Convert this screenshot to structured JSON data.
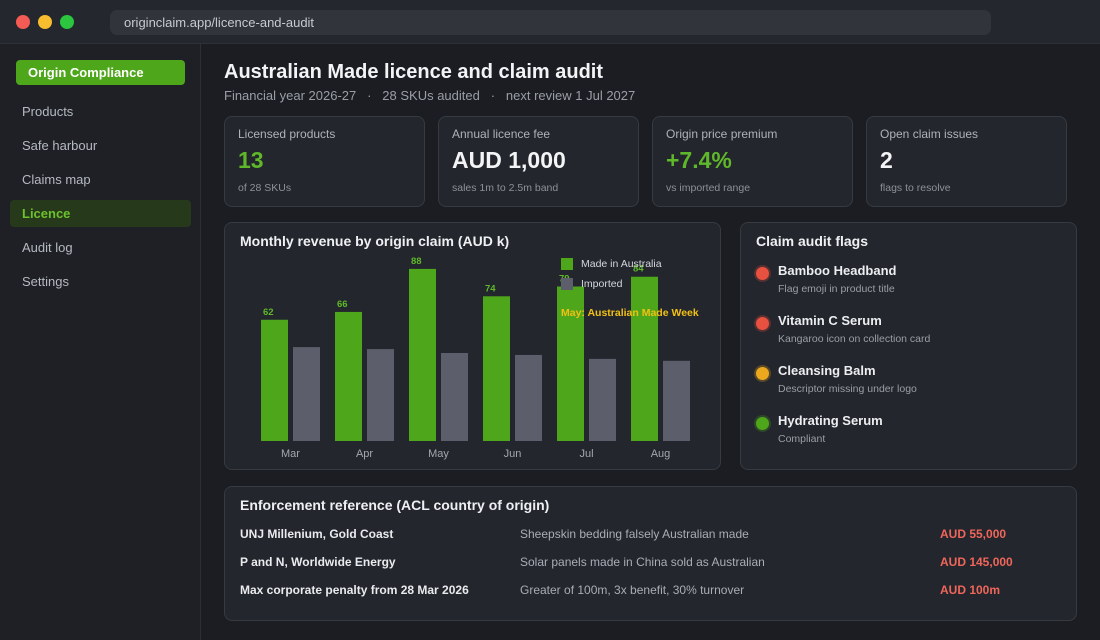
{
  "browser": {
    "url": "originclaim.app/licence-and-audit"
  },
  "sidebar": {
    "brand": "Origin Compliance",
    "items": [
      {
        "label": "Products",
        "active": false
      },
      {
        "label": "Safe harbour",
        "active": false
      },
      {
        "label": "Claims map",
        "active": false
      },
      {
        "label": "Licence",
        "active": true
      },
      {
        "label": "Audit log",
        "active": false
      },
      {
        "label": "Settings",
        "active": false
      }
    ]
  },
  "header": {
    "title": "Australian Made licence and claim audit",
    "fiscal_year": "Financial year 2026-27",
    "skus_audited": "28 SKUs audited",
    "next_review": "next review 1 Jul 2027"
  },
  "kpis": [
    {
      "label": "Licensed products",
      "value": "13",
      "note": "of 28 SKUs",
      "highlight": true
    },
    {
      "label": "Annual licence fee",
      "value": "AUD 1,000",
      "note": "sales 1m to 2.5m band",
      "highlight": false
    },
    {
      "label": "Origin price premium",
      "value": "+7.4%",
      "note": "vs imported range",
      "highlight": true
    },
    {
      "label": "Open claim issues",
      "value": "2",
      "note": "flags to resolve",
      "highlight": false
    }
  ],
  "chart_data": {
    "type": "bar",
    "title": "Monthly revenue by origin claim (AUD k)",
    "categories": [
      "Mar",
      "Apr",
      "May",
      "Jun",
      "Jul",
      "Aug"
    ],
    "series": [
      {
        "name": "Made in Australia",
        "color": "#4ea61b",
        "values": [
          62,
          66,
          88,
          74,
          79,
          84
        ]
      },
      {
        "name": "Imported",
        "color": "#5c5f6b",
        "values": [
          48,
          47,
          45,
          44,
          42,
          41
        ]
      }
    ],
    "ylim": [
      0,
      90
    ],
    "annotation": "May: Australian Made Week",
    "annotation_color": "#f2c014",
    "legend_position": "top-right",
    "grid": false
  },
  "flags": {
    "title": "Claim audit flags",
    "items": [
      {
        "name": "Bamboo Headband",
        "description": "Flag emoji in product title",
        "status_color": "#e8503f"
      },
      {
        "name": "Vitamin C Serum",
        "description": "Kangaroo icon on collection card",
        "status_color": "#e8503f"
      },
      {
        "name": "Cleansing Balm",
        "description": "Descriptor missing under logo",
        "status_color": "#eba81f"
      },
      {
        "name": "Hydrating Serum",
        "description": "Compliant",
        "status_color": "#4ea61b"
      }
    ]
  },
  "enforcement": {
    "title": "Enforcement reference (ACL country of origin)",
    "rows": [
      {
        "party": "UNJ Millenium, Gold Coast",
        "conduct": "Sheepskin bedding falsely Australian made",
        "penalty": "AUD 55,000"
      },
      {
        "party": "P and N, Worldwide Energy",
        "conduct": "Solar panels made in China sold as Australian",
        "penalty": "AUD 145,000"
      },
      {
        "party": "Max corporate penalty from 28 Mar 2026",
        "conduct": "Greater of 100m, 3x benefit, 30% turnover",
        "penalty": "AUD 100m"
      }
    ]
  }
}
